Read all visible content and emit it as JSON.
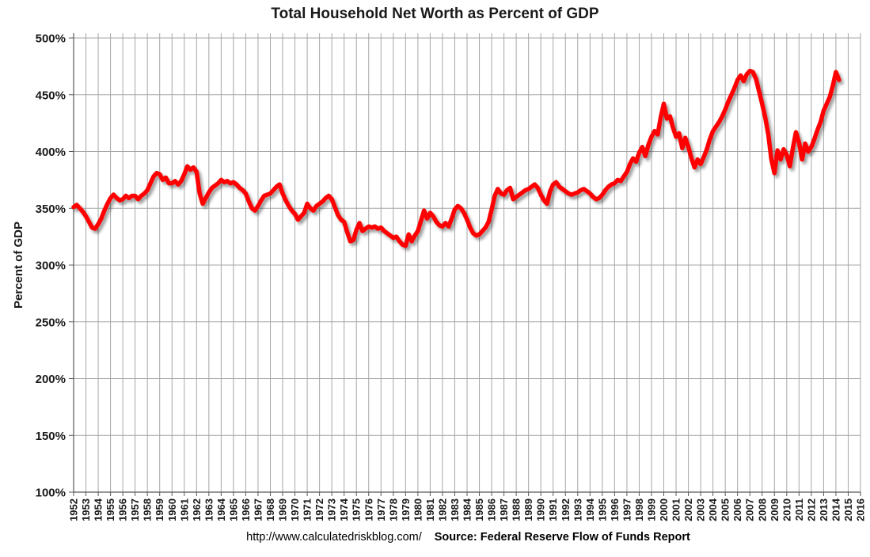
{
  "title": "Total Household Net Worth as Percent of GDP",
  "footer": {
    "url": "http://www.calculatedriskblog.com/",
    "source": "Source: Federal Reserve Flow of Funds Report"
  },
  "chart_data": {
    "type": "line",
    "title": "Total Household Net Worth as Percent of GDP",
    "xlabel": "",
    "ylabel": "Percent of GDP",
    "ylim": [
      100,
      500
    ],
    "y_tick_step": 50,
    "y_tick_format": "percent",
    "y_tick_labels": [
      "100%",
      "150%",
      "200%",
      "250%",
      "300%",
      "350%",
      "400%",
      "450%",
      "500%"
    ],
    "x_tick_years": [
      1952,
      1953,
      1954,
      1955,
      1956,
      1957,
      1958,
      1959,
      1960,
      1961,
      1962,
      1963,
      1964,
      1965,
      1966,
      1967,
      1968,
      1969,
      1970,
      1971,
      1972,
      1973,
      1974,
      1975,
      1976,
      1977,
      1978,
      1979,
      1980,
      1981,
      1982,
      1983,
      1984,
      1985,
      1986,
      1987,
      1988,
      1989,
      1990,
      1991,
      1992,
      1993,
      1994,
      1995,
      1996,
      1997,
      1998,
      1999,
      2000,
      2001,
      2002,
      2003,
      2004,
      2005,
      2006,
      2007,
      2008,
      2009,
      2010,
      2011,
      2012,
      2013,
      2014,
      2015,
      2016
    ],
    "xlim": [
      1952,
      2016
    ],
    "grid": true,
    "legend": "none",
    "colors": {
      "line": "#ff0000",
      "grid": "#a6a6a6",
      "axis": "#595959",
      "text": "#1a1a1a"
    },
    "series": [
      {
        "name": "Household net worth as percent of GDP",
        "start_year": 1952,
        "frequency": "quarterly",
        "values": [
          351,
          353,
          350,
          347,
          343,
          338,
          333,
          332,
          336,
          341,
          348,
          354,
          359,
          362,
          359,
          357,
          358,
          361,
          359,
          361,
          361,
          358,
          361,
          363,
          366,
          372,
          378,
          381,
          380,
          375,
          377,
          372,
          372,
          374,
          371,
          374,
          380,
          387,
          384,
          386,
          382,
          363,
          354,
          359,
          364,
          368,
          370,
          372,
          375,
          373,
          374,
          372,
          373,
          371,
          368,
          366,
          363,
          356,
          350,
          348,
          352,
          357,
          361,
          362,
          363,
          366,
          369,
          371,
          363,
          357,
          352,
          348,
          345,
          340,
          343,
          346,
          354,
          350,
          348,
          352,
          354,
          356,
          359,
          361,
          358,
          351,
          344,
          340,
          338,
          329,
          321,
          322,
          331,
          337,
          330,
          332,
          334,
          333,
          334,
          332,
          333,
          330,
          328,
          326,
          324,
          325,
          321,
          318,
          317,
          327,
          321,
          326,
          330,
          339,
          348,
          341,
          346,
          343,
          338,
          335,
          334,
          337,
          334,
          341,
          349,
          352,
          350,
          346,
          340,
          333,
          328,
          326,
          327,
          330,
          333,
          338,
          349,
          361,
          367,
          363,
          362,
          366,
          368,
          358,
          360,
          362,
          364,
          366,
          367,
          369,
          371,
          368,
          362,
          357,
          354,
          365,
          371,
          373,
          369,
          367,
          365,
          363,
          362,
          363,
          364,
          366,
          367,
          365,
          363,
          360,
          358,
          359,
          362,
          366,
          369,
          371,
          372,
          375,
          374,
          378,
          382,
          389,
          394,
          391,
          399,
          404,
          396,
          406,
          413,
          418,
          415,
          430,
          442,
          429,
          431,
          421,
          413,
          416,
          403,
          412,
          404,
          394,
          386,
          393,
          389,
          395,
          402,
          411,
          418,
          422,
          426,
          431,
          437,
          444,
          450,
          456,
          463,
          467,
          462,
          468,
          471,
          470,
          464,
          453,
          442,
          430,
          415,
          393,
          381,
          401,
          393,
          402,
          397,
          387,
          403,
          417,
          408,
          393,
          407,
          400,
          404,
          411,
          419,
          426,
          436,
          442,
          448,
          458,
          470,
          463
        ]
      }
    ]
  }
}
